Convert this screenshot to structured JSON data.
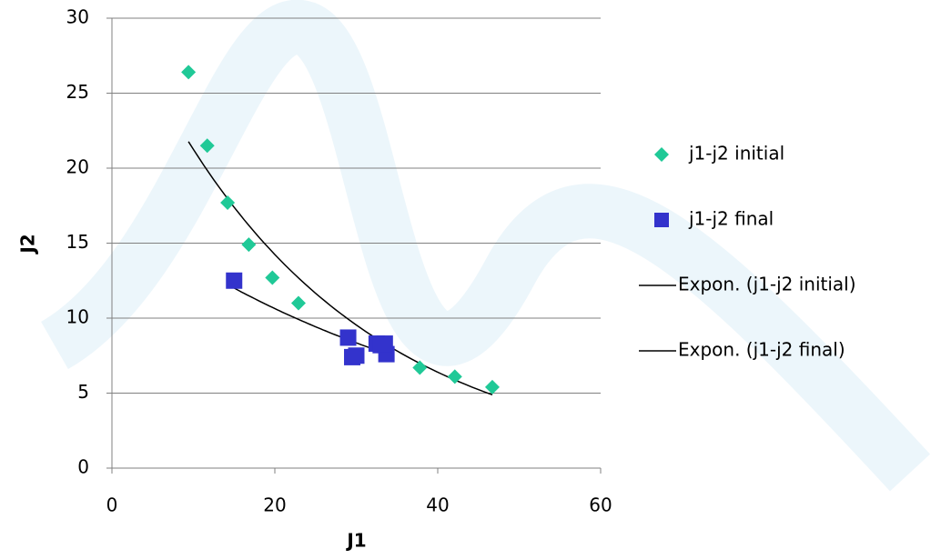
{
  "chart_data": {
    "type": "scatter",
    "x_label": "J1",
    "y_label": "J2",
    "xlim": [
      0,
      60
    ],
    "xticks": [
      0,
      20,
      40,
      60
    ],
    "ylim": [
      0,
      30
    ],
    "yticks": [
      0,
      5,
      10,
      15,
      20,
      25,
      30
    ],
    "grid": true,
    "legend": "right",
    "series": [
      {
        "name": "j1-j2 initial",
        "color": "#20c997",
        "marker": "diamond",
        "x": [
          9.4,
          11.7,
          14.2,
          16.8,
          19.7,
          22.9,
          37.8,
          42.1,
          46.7
        ],
        "y": [
          26.4,
          21.5,
          17.7,
          14.9,
          12.7,
          11.0,
          6.7,
          6.1,
          5.4
        ],
        "trendline": {
          "type": "exponential",
          "name": "Expon. (j1-j2 initial)",
          "color": "#000000"
        }
      },
      {
        "name": "j1-j2 final",
        "color": "#3333cc",
        "marker": "square",
        "x": [
          15.0,
          29.0,
          29.5,
          30.0,
          32.5,
          33.0,
          33.7,
          33.5
        ],
        "y": [
          12.5,
          8.7,
          7.4,
          7.5,
          8.3,
          8.2,
          7.6,
          8.3
        ],
        "trendline": {
          "type": "exponential",
          "name": "Expon. (j1-j2 final)",
          "color": "#000000"
        }
      }
    ]
  }
}
